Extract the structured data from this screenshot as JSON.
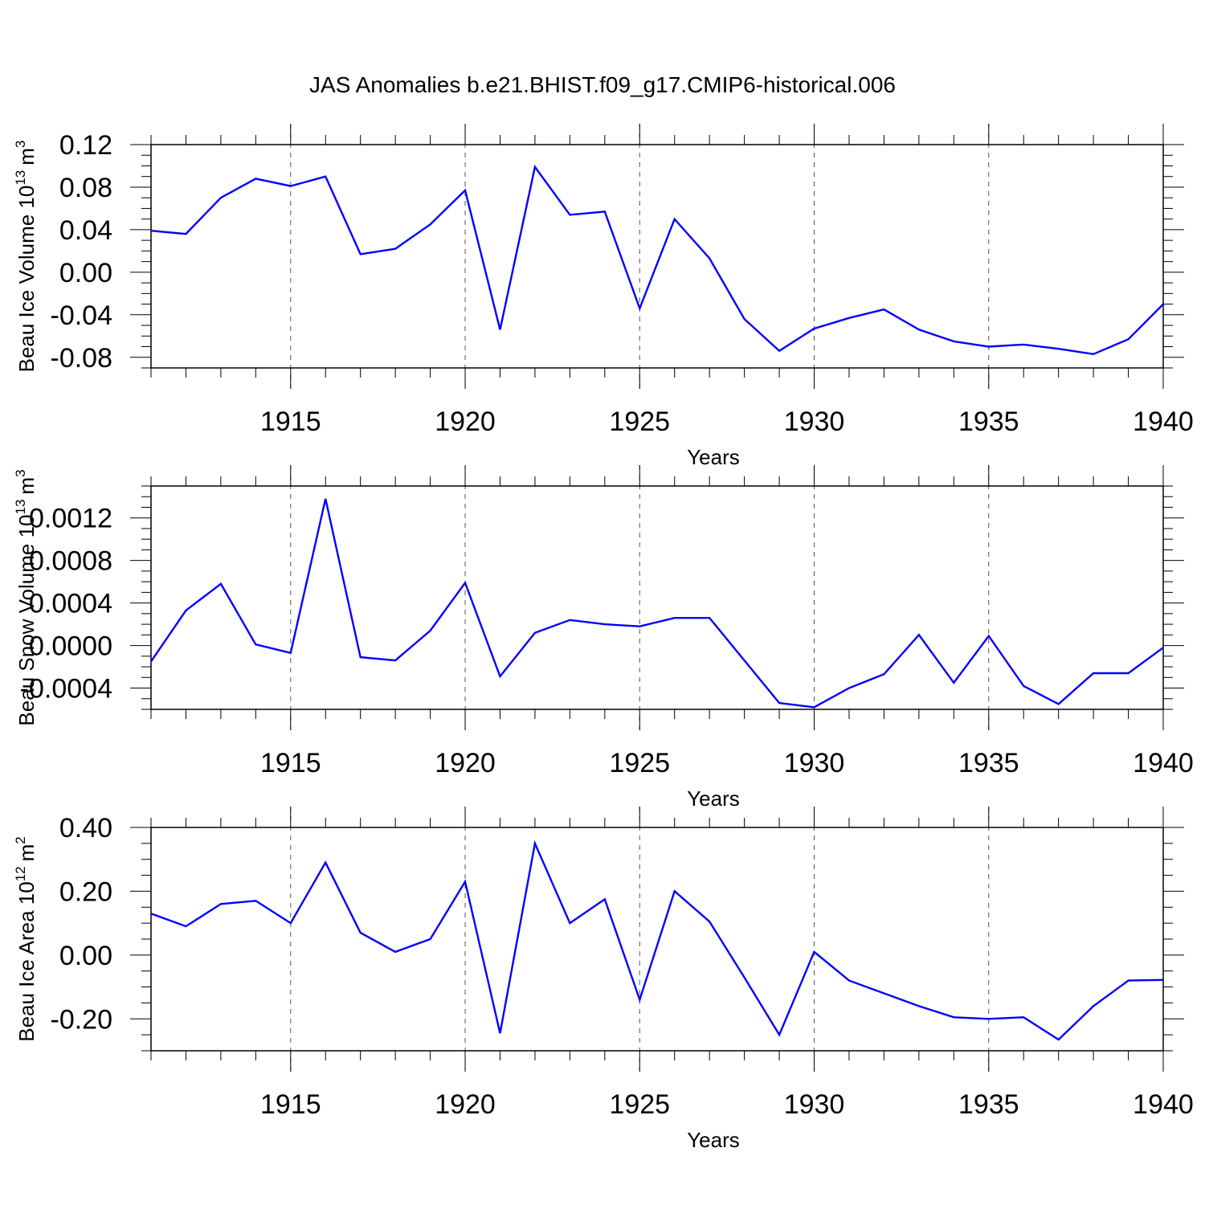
{
  "chart_data": {
    "title": "JAS Anomalies b.e21.BHIST.f09_g17.CMIP6-historical.006",
    "type": "line",
    "line_color": "#0000ff",
    "x": [
      1911,
      1912,
      1913,
      1914,
      1915,
      1916,
      1917,
      1918,
      1919,
      1920,
      1921,
      1922,
      1923,
      1924,
      1925,
      1926,
      1927,
      1928,
      1929,
      1930,
      1931,
      1932,
      1933,
      1934,
      1935,
      1936,
      1937,
      1938,
      1939,
      1940
    ],
    "xlim": [
      1911,
      1940
    ],
    "xticks": [
      1915,
      1920,
      1925,
      1930,
      1935,
      1940
    ],
    "xtick_labels": [
      "1915",
      "1920",
      "1925",
      "1930",
      "1935",
      "1940"
    ],
    "xlabel": "Years",
    "vertical_gridlines_at": [
      1915,
      1920,
      1925,
      1930,
      1935
    ],
    "panels": [
      {
        "name": "ice-volume",
        "ylabel": "Beau Ice Volume 10",
        "ylabel_exponent": "13",
        "ylabel_unit": "m",
        "ylabel_unit_exponent": "3",
        "ylim": [
          -0.09,
          0.12
        ],
        "yticks": [
          -0.08,
          -0.04,
          0.0,
          0.04,
          0.08,
          0.12
        ],
        "ytick_labels": [
          "-0.08",
          "-0.04",
          "0.00",
          "0.04",
          "0.08",
          "0.12"
        ],
        "values": [
          0.039,
          0.036,
          0.07,
          0.088,
          0.081,
          0.09,
          0.017,
          0.022,
          0.045,
          0.077,
          -0.054,
          0.099,
          0.054,
          0.057,
          -0.034,
          0.05,
          0.013,
          -0.044,
          -0.074,
          -0.053,
          -0.043,
          -0.035,
          -0.054,
          -0.065,
          -0.07,
          -0.068,
          -0.072,
          -0.077,
          -0.063,
          -0.03
        ]
      },
      {
        "name": "snow-volume",
        "ylabel": "Beau Snow Volume 10",
        "ylabel_exponent": "13",
        "ylabel_unit": "m",
        "ylabel_unit_exponent": "3",
        "ylim": [
          -0.0006,
          0.0015
        ],
        "yticks": [
          -0.0004,
          0.0,
          0.0004,
          0.0008,
          0.0012
        ],
        "ytick_labels": [
          "-0.0004",
          "0.0000",
          "0.0004",
          "0.0008",
          "0.0012"
        ],
        "values": [
          -0.00015,
          0.00033,
          0.00058,
          1e-05,
          -7e-05,
          0.00138,
          -0.00011,
          -0.00014,
          0.00014,
          0.00059,
          -0.00029,
          0.00012,
          0.00024,
          0.0002,
          0.00018,
          0.00026,
          0.00026,
          -0.00014,
          -0.00054,
          -0.00058,
          -0.0004,
          -0.00027,
          0.0001,
          -0.00035,
          9e-05,
          -0.00038,
          -0.00055,
          -0.00026,
          -0.00026,
          -2e-05
        ]
      },
      {
        "name": "ice-area",
        "ylabel": "Beau Ice Area 10",
        "ylabel_exponent": "12",
        "ylabel_unit": "m",
        "ylabel_unit_exponent": "2",
        "ylim": [
          -0.3,
          0.4
        ],
        "yticks": [
          -0.2,
          0.0,
          0.2,
          0.4
        ],
        "ytick_labels": [
          "-0.20",
          "0.00",
          "0.20",
          "0.40"
        ],
        "values": [
          0.13,
          0.09,
          0.16,
          0.17,
          0.1,
          0.29,
          0.07,
          0.01,
          0.05,
          0.23,
          -0.245,
          0.35,
          0.1,
          0.175,
          -0.14,
          0.2,
          0.105,
          -0.07,
          -0.25,
          0.01,
          -0.08,
          -0.12,
          -0.16,
          -0.195,
          -0.2,
          -0.195,
          -0.265,
          -0.16,
          -0.08,
          -0.078
        ]
      }
    ]
  }
}
